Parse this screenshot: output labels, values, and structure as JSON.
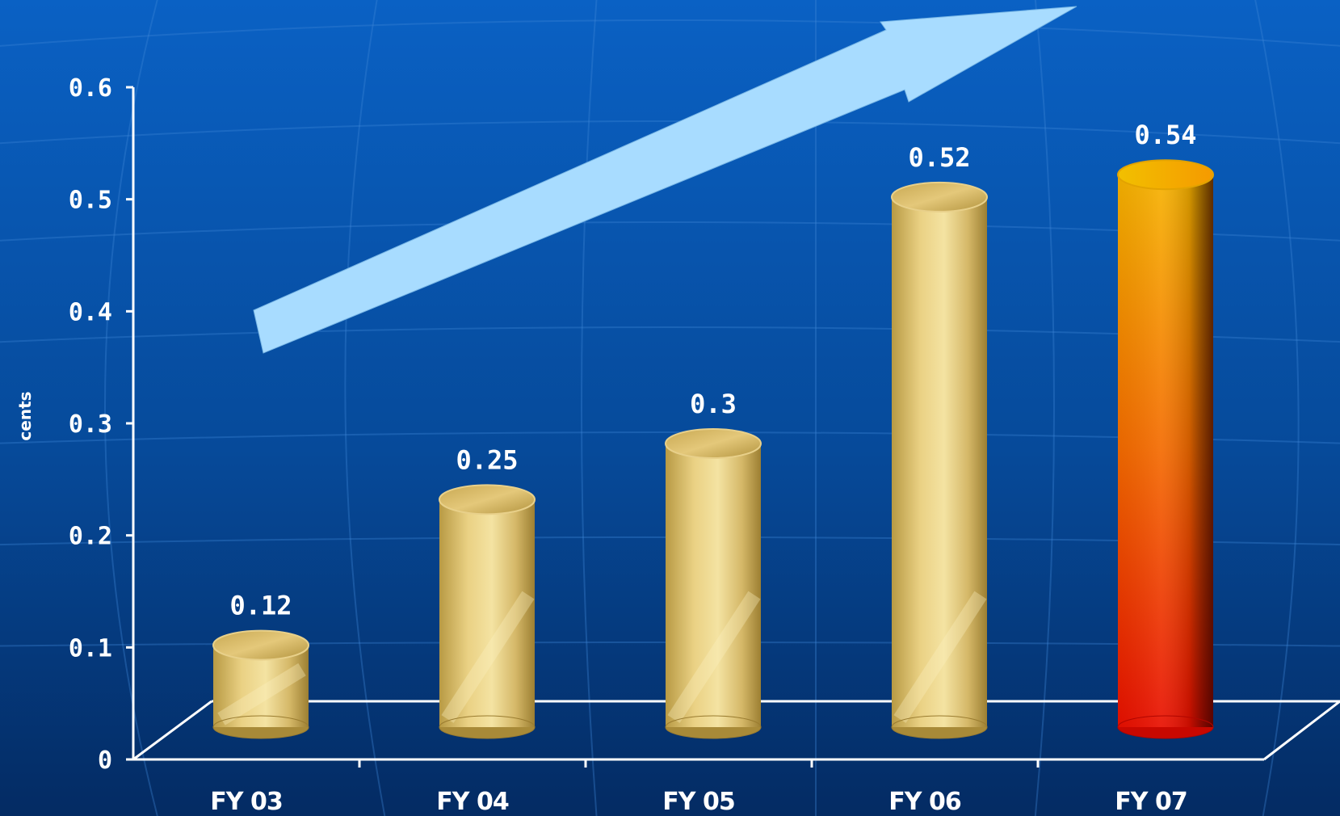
{
  "chart_data": {
    "type": "bar",
    "title": "",
    "xlabel": "",
    "ylabel": "cents",
    "categories": [
      "FY 03",
      "FY 04",
      "FY 05",
      "FY 06",
      "FY 07"
    ],
    "values": [
      0.12,
      0.25,
      0.3,
      0.52,
      0.54
    ],
    "value_labels": [
      "0.12",
      "0.25",
      "0.3",
      "0.52",
      "0.54"
    ],
    "yticks": [
      0,
      0.1,
      0.2,
      0.3,
      0.4,
      0.5,
      0.6
    ],
    "ytick_labels": [
      "0",
      "0.1",
      "0.2",
      "0.3",
      "0.4",
      "0.5",
      "0.6"
    ],
    "ylim": [
      0,
      0.6
    ],
    "grid": false,
    "legend": "none",
    "style": "3d-cylinder",
    "highlighted_category": "FY 07",
    "trend_arrow": "up",
    "colors": {
      "background_top": "#0a5fc0",
      "background_bottom": "#052d66",
      "bar_gold": "#d9bf6a",
      "bar_highlight_top": "#f5b800",
      "bar_highlight_bottom": "#ee1a00",
      "arrow": "#a8dcff",
      "axis": "#ffffff",
      "text": "#ffffff"
    }
  }
}
